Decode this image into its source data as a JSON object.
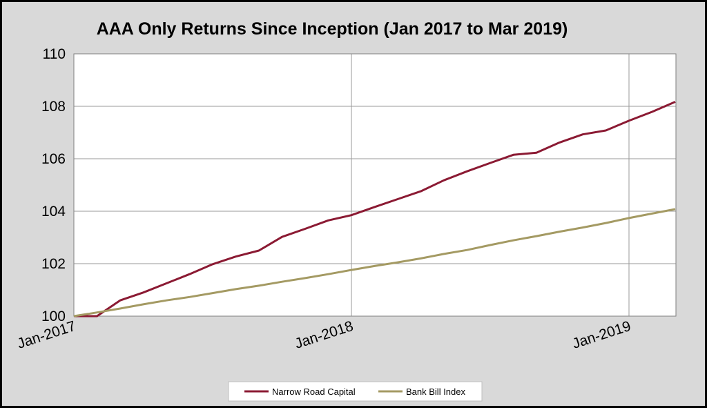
{
  "chart_data": {
    "type": "line",
    "title": "AAA Only Returns Since Inception (Jan 2017 to Mar 2019)",
    "xlabel": "",
    "ylabel": "",
    "ylim": [
      100,
      110
    ],
    "yticks": [
      "100",
      "102",
      "104",
      "106",
      "108",
      "110"
    ],
    "xticks": [
      {
        "label": "Jan-2017",
        "month": 0
      },
      {
        "label": "Jan-2018",
        "month": 12
      },
      {
        "label": "Jan-2019",
        "month": 24
      }
    ],
    "x": [
      "Jan-2017",
      "Feb-2017",
      "Mar-2017",
      "Apr-2017",
      "May-2017",
      "Jun-2017",
      "Jul-2017",
      "Aug-2017",
      "Sep-2017",
      "Oct-2017",
      "Nov-2017",
      "Dec-2017",
      "Jan-2018",
      "Feb-2018",
      "Mar-2018",
      "Apr-2018",
      "May-2018",
      "Jun-2018",
      "Jul-2018",
      "Aug-2018",
      "Sep-2018",
      "Oct-2018",
      "Nov-2018",
      "Dec-2018",
      "Jan-2019",
      "Feb-2019",
      "Mar-2019"
    ],
    "grid": true,
    "legend_position": "bottom",
    "series": [
      {
        "name": "Narrow Road Capital",
        "color": "#8b1a33",
        "values": [
          100.0,
          100.0,
          100.6,
          100.9,
          101.25,
          101.6,
          101.98,
          102.27,
          102.5,
          103.02,
          103.33,
          103.65,
          103.85,
          104.16,
          104.46,
          104.76,
          105.18,
          105.52,
          105.84,
          106.15,
          106.23,
          106.62,
          106.93,
          107.08,
          107.45,
          107.79,
          108.17
        ]
      },
      {
        "name": "Bank Bill Index",
        "color": "#a49a63",
        "values": [
          100.0,
          100.14,
          100.29,
          100.45,
          100.6,
          100.73,
          100.88,
          101.03,
          101.16,
          101.31,
          101.45,
          101.6,
          101.76,
          101.91,
          102.05,
          102.2,
          102.37,
          102.52,
          102.71,
          102.89,
          103.05,
          103.22,
          103.38,
          103.55,
          103.74,
          103.91,
          104.08
        ]
      }
    ]
  }
}
